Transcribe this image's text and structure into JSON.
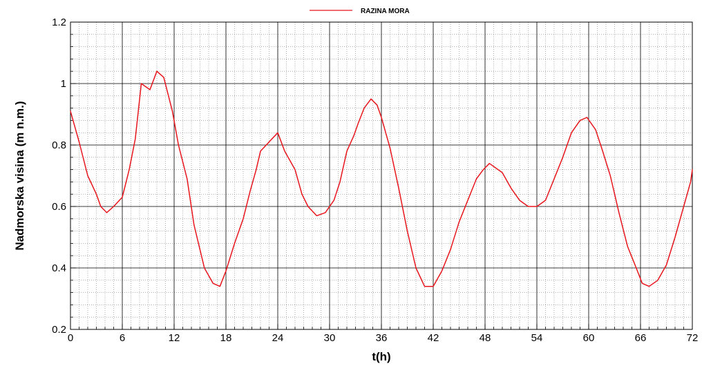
{
  "chart_data": {
    "type": "line",
    "title": "",
    "xlabel": "t(h)",
    "ylabel": "Nadmorska visina (m n.m.)",
    "xlim": [
      0,
      72
    ],
    "ylim": [
      0.2,
      1.2
    ],
    "x_major_ticks": [
      0,
      6,
      12,
      18,
      24,
      30,
      36,
      42,
      48,
      54,
      60,
      66,
      72
    ],
    "x_tick_labels": [
      "0",
      "6",
      "12",
      "18",
      "24",
      "30",
      "36",
      "42",
      "48",
      "54",
      "60",
      "66",
      "72"
    ],
    "y_major_ticks": [
      0.2,
      0.4,
      0.6,
      0.8,
      1.0,
      1.2
    ],
    "y_tick_labels": [
      "0.2",
      "0.4",
      "0.6",
      "0.8",
      "1",
      "1.2"
    ],
    "x_minor_step": 1,
    "y_minor_step": 0.04,
    "grid": true,
    "legend_position": "top-center",
    "series": [
      {
        "name": "RAZINA MORA",
        "color": "#e8141b",
        "points": [
          [
            0.0,
            0.91
          ],
          [
            1.0,
            0.81
          ],
          [
            2.0,
            0.7
          ],
          [
            3.0,
            0.64
          ],
          [
            3.5,
            0.6
          ],
          [
            4.2,
            0.58
          ],
          [
            5.0,
            0.6
          ],
          [
            6.0,
            0.63
          ],
          [
            6.8,
            0.72
          ],
          [
            7.5,
            0.82
          ],
          [
            8.2,
            1.0
          ],
          [
            9.2,
            0.98
          ],
          [
            10.0,
            1.04
          ],
          [
            10.8,
            1.02
          ],
          [
            11.8,
            0.91
          ],
          [
            12.5,
            0.8
          ],
          [
            13.5,
            0.69
          ],
          [
            14.3,
            0.54
          ],
          [
            15.5,
            0.4
          ],
          [
            16.5,
            0.35
          ],
          [
            17.3,
            0.34
          ],
          [
            18.0,
            0.39
          ],
          [
            19.0,
            0.48
          ],
          [
            20.0,
            0.56
          ],
          [
            20.8,
            0.65
          ],
          [
            21.5,
            0.72
          ],
          [
            22.0,
            0.78
          ],
          [
            23.0,
            0.81
          ],
          [
            24.0,
            0.84
          ],
          [
            24.8,
            0.78
          ],
          [
            26.0,
            0.72
          ],
          [
            26.8,
            0.64
          ],
          [
            27.5,
            0.6
          ],
          [
            28.5,
            0.57
          ],
          [
            29.5,
            0.58
          ],
          [
            30.5,
            0.62
          ],
          [
            31.2,
            0.68
          ],
          [
            32.0,
            0.78
          ],
          [
            32.8,
            0.83
          ],
          [
            33.3,
            0.87
          ],
          [
            34.0,
            0.92
          ],
          [
            34.8,
            0.95
          ],
          [
            35.5,
            0.93
          ],
          [
            36.0,
            0.89
          ],
          [
            37.0,
            0.79
          ],
          [
            38.0,
            0.66
          ],
          [
            39.0,
            0.52
          ],
          [
            40.0,
            0.4
          ],
          [
            41.0,
            0.34
          ],
          [
            42.0,
            0.34
          ],
          [
            43.0,
            0.39
          ],
          [
            44.0,
            0.46
          ],
          [
            45.0,
            0.55
          ],
          [
            46.0,
            0.62
          ],
          [
            47.0,
            0.69
          ],
          [
            47.8,
            0.72
          ],
          [
            48.5,
            0.74
          ],
          [
            50.0,
            0.71
          ],
          [
            51.0,
            0.66
          ],
          [
            52.0,
            0.62
          ],
          [
            53.0,
            0.6
          ],
          [
            54.0,
            0.6
          ],
          [
            55.0,
            0.62
          ],
          [
            56.0,
            0.69
          ],
          [
            57.0,
            0.76
          ],
          [
            58.0,
            0.84
          ],
          [
            59.0,
            0.88
          ],
          [
            59.8,
            0.89
          ],
          [
            60.8,
            0.85
          ],
          [
            61.5,
            0.79
          ],
          [
            62.5,
            0.7
          ],
          [
            63.5,
            0.58
          ],
          [
            64.5,
            0.47
          ],
          [
            65.5,
            0.4
          ],
          [
            66.2,
            0.35
          ],
          [
            67.0,
            0.34
          ],
          [
            68.0,
            0.36
          ],
          [
            69.0,
            0.41
          ],
          [
            70.0,
            0.5
          ],
          [
            71.0,
            0.6
          ],
          [
            71.8,
            0.68
          ],
          [
            72.0,
            0.72
          ]
        ]
      }
    ]
  }
}
